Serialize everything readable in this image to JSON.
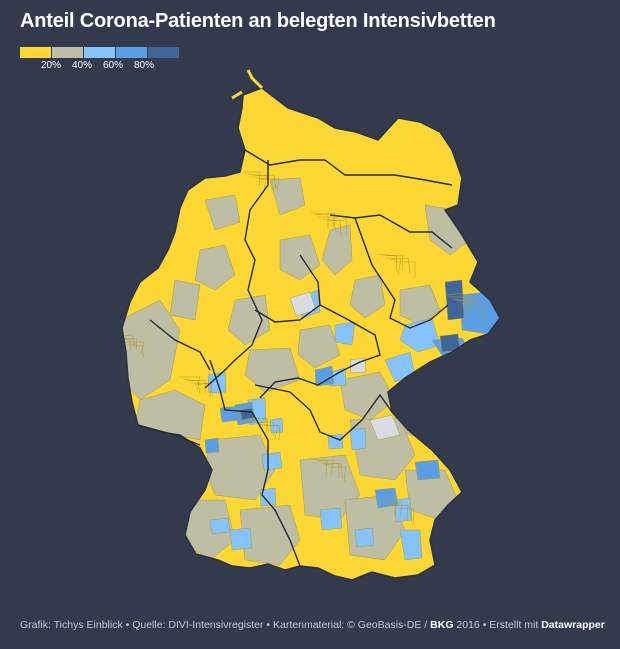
{
  "title": "Anteil Corona-Patienten an belegten Intensivbetten",
  "legend": {
    "colors": [
      "#fdd835",
      "#bdbea3",
      "#84c3ff",
      "#5a9ee6",
      "#3f6699"
    ],
    "labels": [
      "20%",
      "40%",
      "60%",
      "80%"
    ]
  },
  "map": {
    "colors": {
      "yellow": "#fdd835",
      "gray": "#bdbea3",
      "lightblue": "#84c3ff",
      "midblue": "#5a9ee6",
      "darkblue": "#3f6699",
      "nodata": "#d9dce0",
      "border": "#2b3242"
    }
  },
  "footer": {
    "source_text": "Grafik: Tichys Einblick • Quelle: DIVI-Intensivregister • Kartenmaterial: © GeoBasis-DE / ",
    "bkg": "BKG",
    "year_text": " 2016 • Erstellt mit ",
    "datawrapper": "Datawrapper"
  }
}
